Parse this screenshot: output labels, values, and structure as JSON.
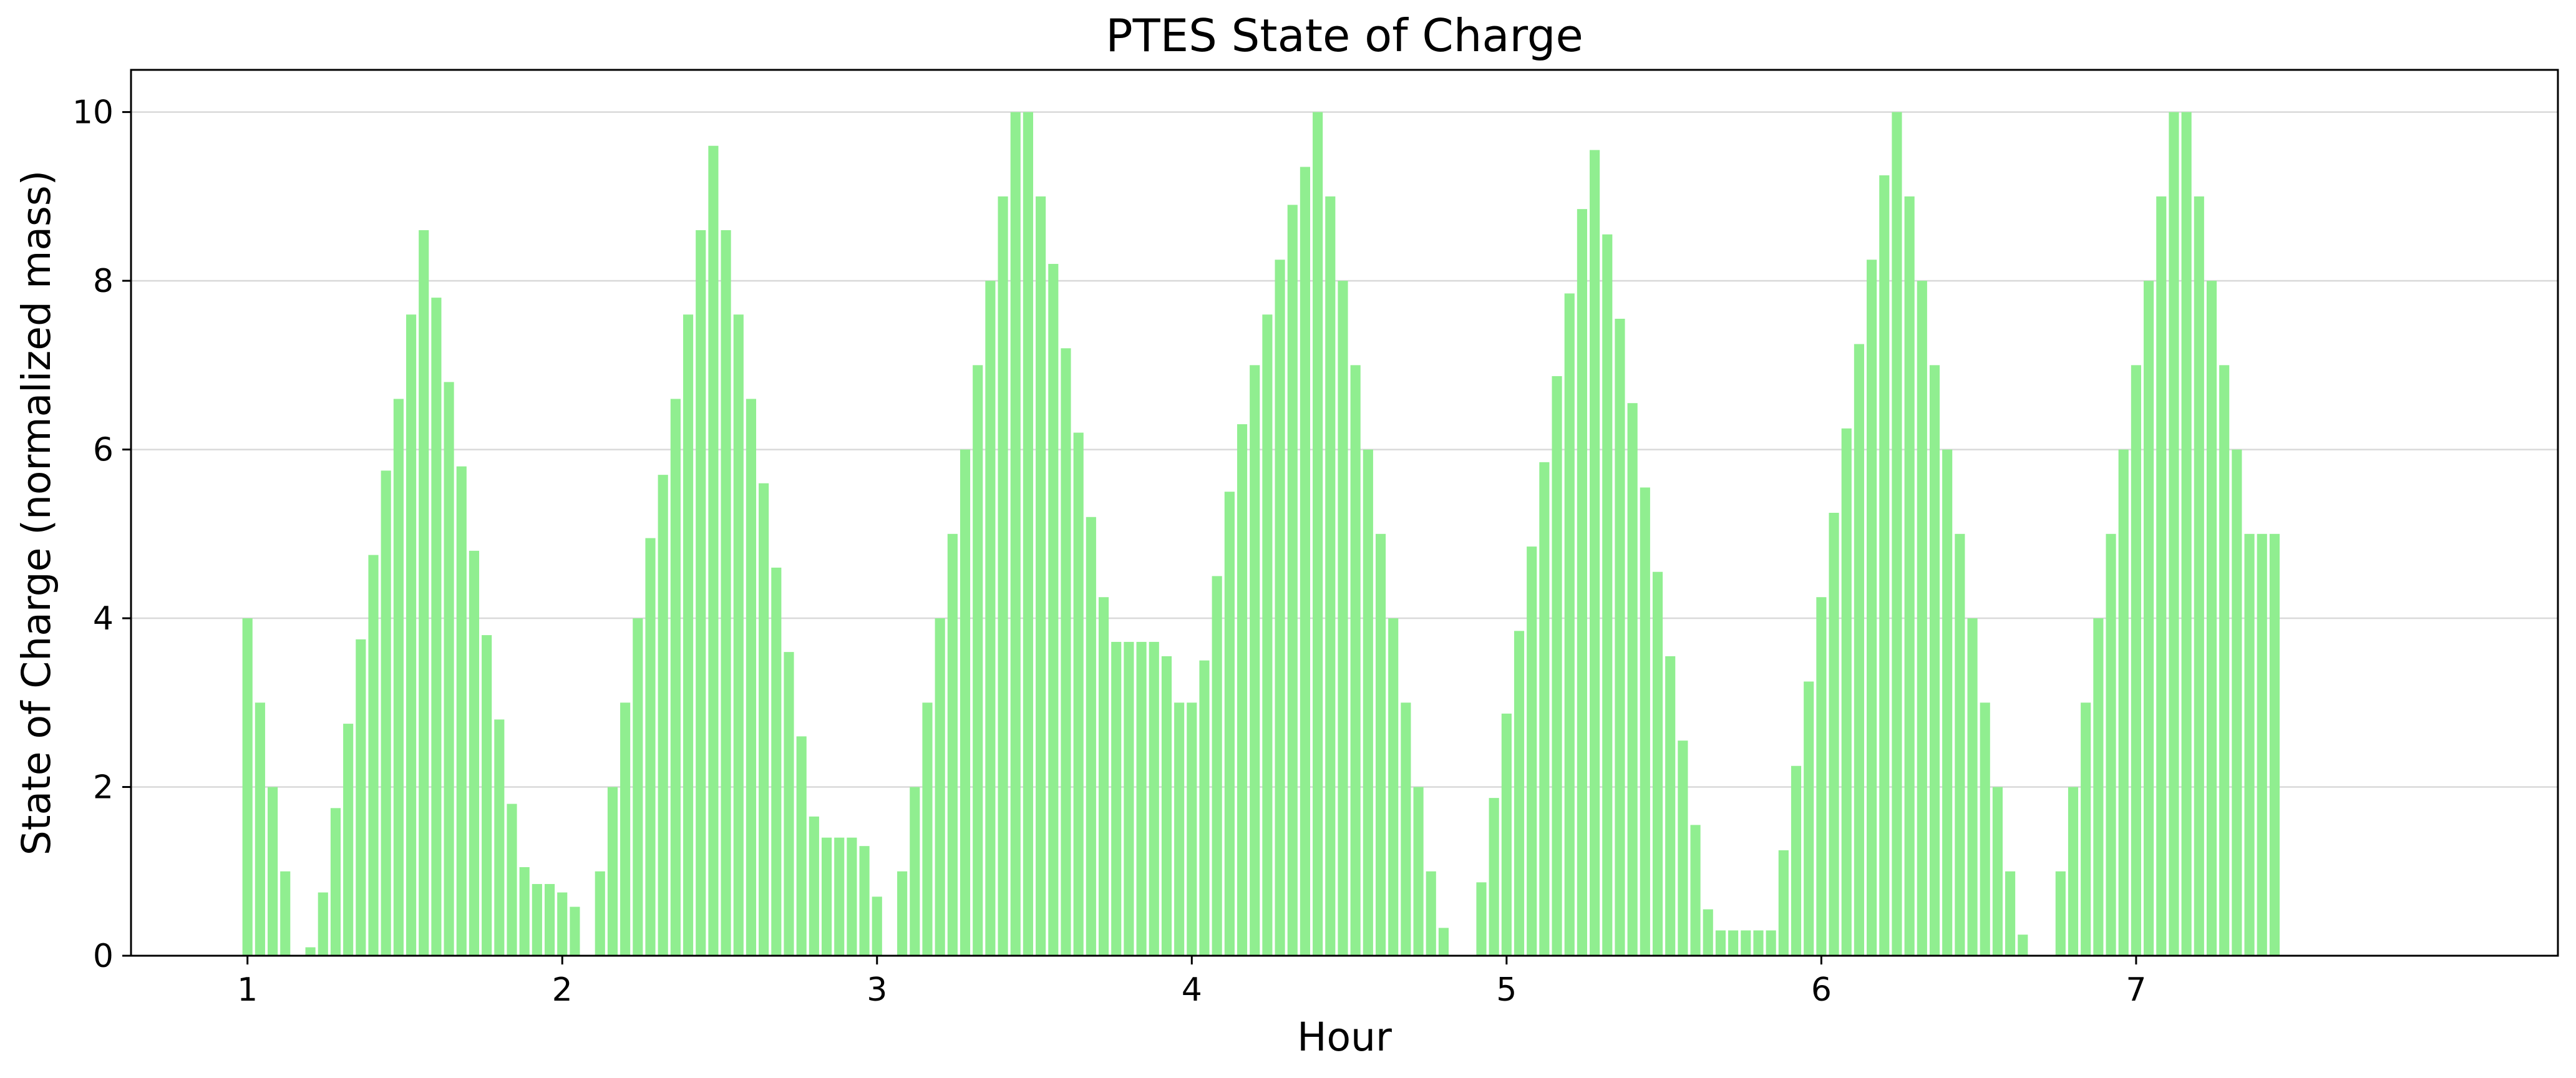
{
  "chart_data": {
    "type": "bar",
    "title": "PTES State of Charge",
    "xlabel": "Hour",
    "ylabel": "State of Charge (normalized mass)",
    "xlim": [
      0.63,
      8.34
    ],
    "ylim": [
      0,
      10.5
    ],
    "x_ticks": [
      1,
      2,
      3,
      4,
      5,
      6,
      7
    ],
    "y_ticks": [
      0,
      2,
      4,
      6,
      8,
      10
    ],
    "grid": "y",
    "bar_color": "#90ee90",
    "bar_spacing": 0.04,
    "x_start": 1.0,
    "values": [
      4,
      3,
      2,
      1,
      0,
      0.1,
      0.75,
      1.75,
      2.75,
      3.75,
      4.75,
      5.75,
      6.6,
      7.6,
      8.6,
      7.8,
      6.8,
      5.8,
      4.8,
      3.8,
      2.8,
      1.8,
      1.05,
      0.85,
      0.85,
      0.75,
      0.58,
      0,
      1,
      2,
      3,
      4,
      4.95,
      5.7,
      6.6,
      7.6,
      8.6,
      9.6,
      8.6,
      7.6,
      6.6,
      5.6,
      4.6,
      3.6,
      2.6,
      1.65,
      1.4,
      1.4,
      1.4,
      1.3,
      0.7,
      0,
      1,
      2,
      3,
      4,
      5,
      6,
      7,
      8,
      9,
      10,
      10,
      9,
      8.2,
      7.2,
      6.2,
      5.2,
      4.25,
      3.72,
      3.72,
      3.72,
      3.72,
      3.55,
      3.0,
      3.0,
      3.5,
      4.5,
      5.5,
      6.3,
      7.0,
      7.6,
      8.25,
      8.9,
      9.35,
      10,
      9.0,
      8.0,
      7.0,
      6.0,
      5.0,
      4.0,
      3.0,
      2.0,
      1.0,
      0.33,
      0,
      0,
      0.87,
      1.87,
      2.87,
      3.85,
      4.85,
      5.85,
      6.87,
      7.85,
      8.85,
      9.55,
      8.55,
      7.55,
      6.55,
      5.55,
      4.55,
      3.55,
      2.55,
      1.55,
      0.55,
      0.3,
      0.3,
      0.3,
      0.3,
      0.3,
      1.25,
      2.25,
      3.25,
      4.25,
      5.25,
      6.25,
      7.25,
      8.25,
      9.25,
      10,
      9.0,
      8.0,
      7.0,
      6.0,
      5.0,
      4.0,
      3.0,
      2.0,
      1.0,
      0.25,
      0,
      0,
      1,
      2,
      3,
      4,
      5,
      6,
      7,
      8,
      9,
      10,
      10,
      9,
      8,
      7,
      6,
      5,
      5,
      5
    ]
  }
}
